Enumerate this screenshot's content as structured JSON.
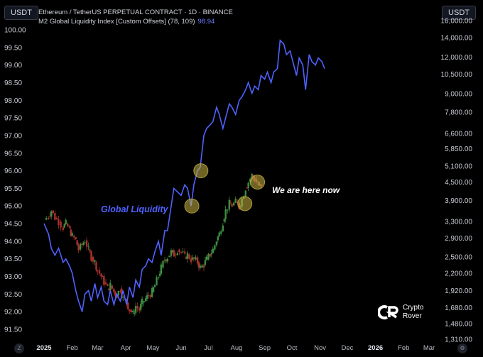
{
  "header": {
    "quote_currency_left": "USDT",
    "quote_currency_right": "USDT",
    "series_title": "Ethereum / TetherUS PERPETUAL CONTRACT · 1D · BINANCE",
    "indicator_title": "M2 Global Liquidity Index [Custom Offsets] (78, 109)",
    "indicator_value": "98.94"
  },
  "annotations": {
    "liquidity_label": "Global Liquidity",
    "now_label": "We are here now"
  },
  "logo": {
    "line1": "Crypto",
    "line2": "Rover"
  },
  "footer": {
    "left_button": "Z",
    "right_button": "⚙"
  },
  "colors": {
    "background": "#000000",
    "liquidity_line": "#4f62ff",
    "candle_up": "#3e8e41",
    "candle_down": "#a8322d",
    "circle_fill": "#c9b441",
    "now_text": "#ffffff"
  },
  "chart_data": {
    "type": "line",
    "x_ticks": [
      "2025",
      "Feb",
      "Mar",
      "Apr",
      "May",
      "Jun",
      "Jul",
      "Aug",
      "Sep",
      "Oct",
      "Nov",
      "Dec",
      "2026",
      "Feb",
      "Mar"
    ],
    "y_left": {
      "ticks": [
        "100.00",
        "99.50",
        "99.00",
        "98.50",
        "98.00",
        "97.50",
        "97.00",
        "96.50",
        "96.00",
        "95.50",
        "95.00",
        "94.50",
        "94.00",
        "93.50",
        "93.00",
        "92.50",
        "92.00",
        "91.50"
      ],
      "range": [
        91.5,
        100.0
      ]
    },
    "y_right": {
      "scale": "log",
      "ticks": [
        "16,000.00",
        "14,000.00",
        "12,000.00",
        "10,500.00",
        "9,000.00",
        "7,800.00",
        "6,600.00",
        "5,850.00",
        "5,100.00",
        "4,500.00",
        "3,900.00",
        "3,300.00",
        "2,900.00",
        "2,500.00",
        "2,200.00",
        "1,920.00",
        "1,680.00",
        "1,480.00",
        "1,310.00"
      ],
      "range": [
        1310,
        16000
      ]
    },
    "series": [
      {
        "name": "Global Liquidity",
        "axis": "left",
        "x": [
          "2025-01-01",
          "2025-01-06",
          "2025-01-09",
          "2025-01-13",
          "2025-01-17",
          "2025-01-22",
          "2025-01-25",
          "2025-01-29",
          "2025-02-01",
          "2025-02-05",
          "2025-02-08",
          "2025-02-12",
          "2025-02-15",
          "2025-02-19",
          "2025-02-22",
          "2025-02-26",
          "2025-03-01",
          "2025-03-05",
          "2025-03-08",
          "2025-03-12",
          "2025-03-15",
          "2025-03-19",
          "2025-03-22",
          "2025-03-26",
          "2025-03-29",
          "2025-04-02",
          "2025-04-05",
          "2025-04-09",
          "2025-04-12",
          "2025-04-16",
          "2025-04-19",
          "2025-04-23",
          "2025-04-26",
          "2025-04-30",
          "2025-05-03",
          "2025-05-07",
          "2025-05-10",
          "2025-05-14",
          "2025-05-17",
          "2025-05-21",
          "2025-05-24",
          "2025-05-28",
          "2025-06-01",
          "2025-06-05",
          "2025-06-08",
          "2025-06-12",
          "2025-06-15",
          "2025-06-19",
          "2025-06-22",
          "2025-06-26",
          "2025-06-29",
          "2025-07-03",
          "2025-07-06",
          "2025-07-10",
          "2025-07-13",
          "2025-07-17",
          "2025-07-20",
          "2025-07-24",
          "2025-07-27",
          "2025-07-31",
          "2025-08-04",
          "2025-08-07",
          "2025-08-11",
          "2025-08-14",
          "2025-08-18",
          "2025-08-21",
          "2025-08-25",
          "2025-08-28",
          "2025-09-01",
          "2025-09-04",
          "2025-09-08",
          "2025-09-11",
          "2025-09-15",
          "2025-09-18",
          "2025-09-22",
          "2025-09-25",
          "2025-09-29",
          "2025-10-02",
          "2025-10-06",
          "2025-10-09",
          "2025-10-13",
          "2025-10-16",
          "2025-10-20",
          "2025-10-23",
          "2025-10-27",
          "2025-10-30",
          "2025-11-03",
          "2025-11-06"
        ],
        "values": [
          94.5,
          94.2,
          93.8,
          93.6,
          93.8,
          93.4,
          93.5,
          93.3,
          93.1,
          92.6,
          92.3,
          92.0,
          92.5,
          92.6,
          92.3,
          92.8,
          92.4,
          92.7,
          92.3,
          92.2,
          92.6,
          92.2,
          92.5,
          92.3,
          92.6,
          92.2,
          92.7,
          92.4,
          92.9,
          92.7,
          93.2,
          93.3,
          93.5,
          93.4,
          93.7,
          94.0,
          93.6,
          94.3,
          94.3,
          95.0,
          95.5,
          95.4,
          95.3,
          95.6,
          95.5,
          95.0,
          95.6,
          96.0,
          96.1,
          97.0,
          97.2,
          97.3,
          97.4,
          97.8,
          97.6,
          97.2,
          97.5,
          97.9,
          97.8,
          97.6,
          98.0,
          98.1,
          98.3,
          98.5,
          98.2,
          98.4,
          98.3,
          98.7,
          98.6,
          98.8,
          98.5,
          98.8,
          98.9,
          99.7,
          99.6,
          99.3,
          99.4,
          99.1,
          98.7,
          99.2,
          99.0,
          98.3,
          99.3,
          99.1,
          99.0,
          99.2,
          99.1,
          98.9
        ]
      },
      {
        "name": "",
        "axis": "right",
        "x": [
          "2025-01-01",
          "2025-01-06",
          "2025-01-09",
          "2025-01-13",
          "2025-01-17",
          "2025-01-22",
          "2025-01-25",
          "2025-01-29",
          "2025-02-01",
          "2025-02-05",
          "2025-02-08",
          "2025-02-12",
          "2025-02-15",
          "2025-02-19",
          "2025-02-22",
          "2025-02-26",
          "2025-03-01",
          "2025-03-05",
          "2025-03-08",
          "2025-03-12",
          "2025-03-15",
          "2025-03-19",
          "2025-03-22",
          "2025-03-26",
          "2025-03-29",
          "2025-04-02",
          "2025-04-05",
          "2025-04-09",
          "2025-04-12",
          "2025-04-16",
          "2025-04-19",
          "2025-04-23",
          "2025-04-26",
          "2025-04-30",
          "2025-05-03",
          "2025-05-07",
          "2025-05-10",
          "2025-05-14",
          "2025-05-17",
          "2025-05-21",
          "2025-05-24",
          "2025-05-28",
          "2025-06-01",
          "2025-06-05",
          "2025-06-08",
          "2025-06-12",
          "2025-06-15",
          "2025-06-19",
          "2025-06-22",
          "2025-06-26",
          "2025-06-29",
          "2025-07-03",
          "2025-07-06",
          "2025-07-10",
          "2025-07-13",
          "2025-07-17",
          "2025-07-20",
          "2025-07-24",
          "2025-07-27",
          "2025-07-31",
          "2025-08-04",
          "2025-08-07",
          "2025-08-11",
          "2025-08-14",
          "2025-08-18",
          "2025-08-21",
          "2025-08-25",
          "2025-08-28"
        ],
        "values": [
          3350,
          3450,
          3600,
          3400,
          3300,
          3150,
          3250,
          3100,
          2950,
          2850,
          2650,
          2750,
          2850,
          2650,
          2500,
          2400,
          2250,
          2150,
          2050,
          1950,
          2000,
          1900,
          1850,
          1950,
          1800,
          1750,
          1650,
          1600,
          1700,
          1650,
          1750,
          1800,
          1850,
          1900,
          2000,
          2150,
          2300,
          2450,
          2500,
          2600,
          2550,
          2650,
          2600,
          2500,
          2550,
          2450,
          2450,
          2400,
          2300,
          2350,
          2450,
          2550,
          2650,
          2850,
          3000,
          3300,
          3600,
          3800,
          3750,
          3850,
          3700,
          3950,
          4300,
          4500,
          4750,
          4600,
          4400,
          4300
        ]
      }
    ]
  }
}
